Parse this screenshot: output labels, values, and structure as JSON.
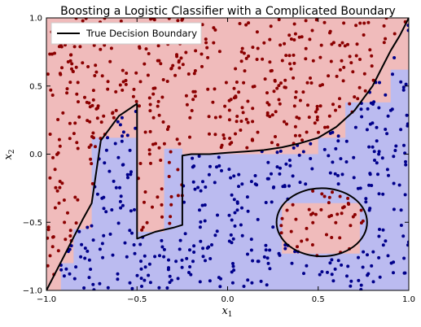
{
  "chart_data": {
    "type": "scatter",
    "title": "Boosting a Logistic Classifier with a Complicated Boundary",
    "xlabel": "x",
    "xlabel_sub": "1",
    "ylabel": "x",
    "ylabel_sub": "2",
    "xlim": [
      -1.0,
      1.0
    ],
    "ylim": [
      -1.0,
      1.0
    ],
    "xticks": [
      -1.0,
      -0.5,
      0.0,
      0.5,
      1.0
    ],
    "yticks": [
      -1.0,
      -0.5,
      0.0,
      0.5,
      1.0
    ],
    "xtick_labels": [
      "−1.0",
      "−0.5",
      "0.0",
      "0.5",
      "1.0"
    ],
    "ytick_labels": [
      "−1.0",
      "−0.5",
      "0.0",
      "0.5",
      "1.0"
    ],
    "grid": false,
    "legend": {
      "placement": "top-left",
      "entries": [
        "True Decision Boundary"
      ]
    },
    "colors": {
      "region_positive": "#f0bbbb",
      "region_negative": "#bbbbf0",
      "points_positive": "#8b0000",
      "points_negative": "#00008b",
      "boundary": "#000000"
    },
    "boundary_curve": {
      "x": [
        -1.0,
        -0.9,
        -0.8,
        -0.75,
        -0.7,
        -0.6,
        -0.5,
        -0.5,
        -0.4,
        -0.3,
        -0.25,
        -0.25,
        -0.2,
        -0.1,
        0.0,
        0.1,
        0.2,
        0.3,
        0.4,
        0.5,
        0.6,
        0.7,
        0.8,
        0.85,
        0.9,
        0.95,
        1.0
      ],
      "y": [
        -1.0,
        -0.74,
        -0.48,
        -0.36,
        0.1,
        0.28,
        0.37,
        -0.62,
        -0.57,
        -0.54,
        -0.52,
        -0.01,
        0.0,
        0.0,
        0.01,
        0.02,
        0.03,
        0.05,
        0.08,
        0.12,
        0.2,
        0.32,
        0.5,
        0.63,
        0.76,
        0.87,
        1.0
      ]
    },
    "boundary_ellipse": {
      "cx": 0.52,
      "cy": -0.5,
      "rx": 0.25,
      "ry": 0.25
    },
    "regions_positive": [
      [
        [
          -1.0,
          -1.0
        ],
        [
          -1.0,
          1.0
        ],
        [
          1.0,
          1.0
        ],
        [
          1.0,
          0.62
        ],
        [
          0.9,
          0.62
        ],
        [
          0.9,
          0.38
        ],
        [
          0.65,
          0.38
        ],
        [
          0.65,
          0.12
        ],
        [
          0.5,
          0.12
        ],
        [
          0.5,
          0.0
        ],
        [
          0.25,
          0.0
        ],
        [
          0.25,
          0.0
        ],
        [
          -0.25,
          0.0
        ],
        [
          -0.25,
          0.04
        ],
        [
          -0.35,
          0.04
        ],
        [
          -0.35,
          -0.57
        ],
        [
          -0.5,
          -0.57
        ],
        [
          -0.5,
          0.12
        ],
        [
          -0.75,
          0.12
        ],
        [
          -0.75,
          -0.55
        ],
        [
          -0.85,
          -0.55
        ],
        [
          -0.85,
          -0.8
        ],
        [
          -0.92,
          -0.8
        ],
        [
          -0.92,
          -1.0
        ]
      ],
      [
        [
          0.3,
          -0.36
        ],
        [
          0.73,
          -0.36
        ],
        [
          0.73,
          -0.73
        ],
        [
          0.3,
          -0.73
        ]
      ]
    ],
    "sample_points": {
      "count": 900,
      "seed": 11,
      "pos_color": "points_positive",
      "neg_color": "points_negative"
    }
  }
}
